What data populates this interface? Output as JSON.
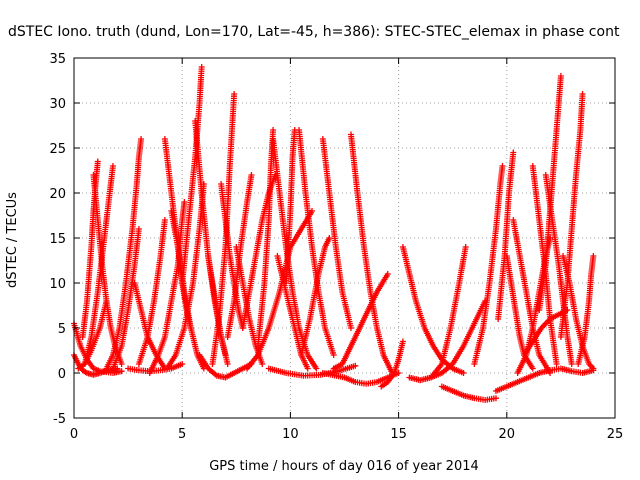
{
  "chart_data": {
    "type": "scatter",
    "title": "dSTEC Iono. truth (dund, Lon=170, Lat=-45, h=386): STEC-STEC_elemax in phase cont",
    "xlabel": "GPS time / hours of day 016 of year 2014",
    "ylabel": "dSTEC  / TECUs",
    "xlim": [
      0,
      25
    ],
    "ylim": [
      -5,
      35
    ],
    "xticks": [
      0,
      5,
      10,
      15,
      20,
      25
    ],
    "yticks": [
      -5,
      0,
      5,
      10,
      15,
      20,
      25,
      30,
      35
    ],
    "grid": true,
    "marker": "+",
    "color": "#ff0000",
    "series": [
      {
        "x": [
          0.0,
          0.3,
          0.6,
          0.9,
          1.2,
          1.5,
          1.8,
          2.2
        ],
        "y": [
          5.5,
          3.0,
          1.5,
          0.5,
          0.2,
          0.1,
          0.0,
          0.2
        ]
      },
      {
        "x": [
          0.0,
          0.2,
          0.4,
          0.6,
          0.9,
          1.2,
          1.6,
          2.0
        ],
        "y": [
          2.0,
          1.0,
          0.3,
          0.0,
          -0.2,
          0.0,
          0.3,
          0.5
        ]
      },
      {
        "x": [
          0.4,
          0.6,
          0.8,
          0.9,
          1.0,
          1.1
        ],
        "y": [
          4.0,
          8.0,
          14.0,
          18.0,
          21.0,
          23.5
        ]
      },
      {
        "x": [
          0.9,
          1.1,
          1.3,
          1.5,
          1.7,
          1.9,
          2.2
        ],
        "y": [
          22.0,
          17.0,
          12.0,
          8.0,
          5.0,
          3.0,
          1.0
        ]
      },
      {
        "x": [
          0.5,
          0.8,
          1.1,
          1.4,
          1.6,
          1.8
        ],
        "y": [
          1.0,
          4.0,
          9.0,
          15.0,
          19.0,
          23.0
        ]
      },
      {
        "x": [
          0.2,
          0.5,
          0.8,
          1.2,
          1.5
        ],
        "y": [
          0.5,
          1.0,
          2.5,
          5.0,
          8.0
        ]
      },
      {
        "x": [
          1.5,
          1.8,
          2.1,
          2.4,
          2.7,
          2.9,
          3.0,
          3.1
        ],
        "y": [
          0.5,
          2.0,
          5.0,
          10.0,
          16.0,
          21.0,
          24.0,
          26.0
        ]
      },
      {
        "x": [
          1.8,
          2.2,
          2.5,
          2.8,
          3.0
        ],
        "y": [
          0.5,
          3.0,
          7.0,
          12.0,
          16.0
        ]
      },
      {
        "x": [
          2.8,
          3.1,
          3.4,
          3.8,
          4.2
        ],
        "y": [
          10.0,
          7.0,
          4.0,
          2.0,
          0.5
        ]
      },
      {
        "x": [
          2.5,
          3.0,
          3.5,
          4.0,
          4.5,
          5.0
        ],
        "y": [
          0.5,
          0.3,
          0.2,
          0.3,
          0.5,
          1.0
        ]
      },
      {
        "x": [
          3.0,
          3.4,
          3.7,
          4.0,
          4.2
        ],
        "y": [
          1.0,
          4.0,
          8.0,
          13.0,
          17.0
        ]
      },
      {
        "x": [
          3.5,
          3.9,
          4.2,
          4.5,
          4.8,
          5.0,
          5.1
        ],
        "y": [
          0.0,
          2.0,
          4.0,
          8.0,
          12.0,
          17.0,
          19.0
        ]
      },
      {
        "x": [
          4.2,
          4.5,
          4.8,
          5.1,
          5.4,
          5.7,
          6.0
        ],
        "y": [
          26.0,
          20.0,
          14.0,
          9.0,
          5.0,
          2.0,
          0.5
        ]
      },
      {
        "x": [
          4.5,
          4.8,
          5.0,
          5.2,
          5.4
        ],
        "y": [
          18.0,
          14.0,
          10.0,
          7.0,
          5.0
        ]
      },
      {
        "x": [
          5.0,
          5.3,
          5.6,
          5.8,
          5.9
        ],
        "y": [
          10.0,
          17.0,
          24.0,
          30.0,
          34.0
        ]
      },
      {
        "x": [
          4.3,
          4.7,
          5.1,
          5.5,
          5.8,
          6.0
        ],
        "y": [
          0.5,
          2.0,
          5.0,
          10.0,
          16.0,
          21.0
        ]
      },
      {
        "x": [
          5.6,
          5.9,
          6.2,
          6.5,
          6.8,
          7.1
        ],
        "y": [
          28.0,
          20.0,
          13.0,
          8.0,
          4.0,
          1.0
        ]
      },
      {
        "x": [
          5.8,
          6.2,
          6.6,
          7.0,
          7.4,
          7.8,
          8.2
        ],
        "y": [
          2.0,
          0.5,
          -0.3,
          -0.5,
          0.0,
          0.5,
          1.0
        ]
      },
      {
        "x": [
          6.2,
          6.4,
          6.6,
          6.8,
          7.0
        ],
        "y": [
          13.0,
          10.0,
          7.0,
          4.0,
          2.0
        ]
      },
      {
        "x": [
          6.4,
          6.7,
          7.0,
          7.2,
          7.4
        ],
        "y": [
          1.0,
          6.0,
          14.0,
          23.0,
          31.0
        ]
      },
      {
        "x": [
          6.8,
          7.0,
          7.2,
          7.4,
          7.6,
          7.8
        ],
        "y": [
          21.0,
          17.0,
          13.0,
          10.0,
          7.0,
          5.0
        ]
      },
      {
        "x": [
          7.1,
          7.4,
          7.7,
          8.0,
          8.2
        ],
        "y": [
          4.0,
          8.0,
          14.0,
          19.0,
          22.0
        ]
      },
      {
        "x": [
          7.5,
          7.8,
          8.1,
          8.4,
          8.7
        ],
        "y": [
          14.0,
          10.0,
          6.0,
          3.0,
          1.0
        ]
      },
      {
        "x": [
          7.8,
          8.1,
          8.4,
          8.7,
          9.0,
          9.3
        ],
        "y": [
          5.0,
          9.0,
          13.0,
          17.0,
          20.0,
          22.0
        ]
      },
      {
        "x": [
          8.5,
          8.8,
          9.0,
          9.1,
          9.2
        ],
        "y": [
          3.0,
          10.0,
          17.0,
          23.0,
          27.0
        ]
      },
      {
        "x": [
          9.2,
          9.5,
          9.8,
          10.1,
          10.4,
          10.8,
          11.2
        ],
        "y": [
          26.0,
          20.0,
          14.0,
          9.0,
          5.0,
          2.0,
          0.5
        ]
      },
      {
        "x": [
          9.4,
          9.8,
          10.2,
          10.5,
          10.8
        ],
        "y": [
          13.0,
          9.0,
          5.0,
          2.0,
          0.5
        ]
      },
      {
        "x": [
          8.0,
          8.5,
          9.0,
          9.5,
          10.0,
          10.5,
          11.0
        ],
        "y": [
          0.5,
          2.0,
          5.0,
          9.0,
          14.0,
          16.0,
          18.0
        ]
      },
      {
        "x": [
          9.8,
          10.0,
          10.1,
          10.2
        ],
        "y": [
          10.0,
          18.0,
          24.0,
          27.0
        ]
      },
      {
        "x": [
          10.4,
          10.7,
          11.0,
          11.3,
          11.6,
          12.0
        ],
        "y": [
          27.0,
          20.0,
          14.0,
          9.0,
          5.0,
          2.0
        ]
      },
      {
        "x": [
          10.5,
          10.9,
          11.3,
          11.6,
          11.8
        ],
        "y": [
          2.0,
          6.0,
          11.0,
          14.0,
          15.0
        ]
      },
      {
        "x": [
          11.5,
          11.8,
          12.1,
          12.4,
          12.8
        ],
        "y": [
          26.0,
          20.0,
          14.0,
          9.0,
          5.0
        ]
      },
      {
        "x": [
          9.0,
          9.8,
          10.6,
          11.4,
          12.2,
          13.0
        ],
        "y": [
          0.5,
          0.0,
          -0.3,
          -0.2,
          0.2,
          0.8
        ]
      },
      {
        "x": [
          12.0,
          12.4,
          12.8,
          13.2,
          13.6,
          14.0,
          14.5
        ],
        "y": [
          0.5,
          1.0,
          3.0,
          5.0,
          7.0,
          9.0,
          11.0
        ]
      },
      {
        "x": [
          12.8,
          13.1,
          13.4,
          13.7,
          14.0,
          14.3,
          14.7
        ],
        "y": [
          26.5,
          20.0,
          14.0,
          9.0,
          5.0,
          2.0,
          0.0
        ]
      },
      {
        "x": [
          11.5,
          12.5,
          13.0,
          13.5,
          14.0,
          14.5,
          15.0
        ],
        "y": [
          0.0,
          -0.5,
          -1.0,
          -1.2,
          -1.0,
          -0.5,
          0.0
        ]
      },
      {
        "x": [
          14.2,
          14.5,
          14.8,
          15.0,
          15.2
        ],
        "y": [
          -1.5,
          -1.0,
          0.0,
          1.5,
          3.5
        ]
      },
      {
        "x": [
          15.2,
          15.5,
          15.8,
          16.2,
          16.6,
          17.0,
          17.5,
          18.0
        ],
        "y": [
          14.0,
          11.0,
          8.0,
          5.0,
          3.0,
          1.5,
          0.5,
          0.0
        ]
      },
      {
        "x": [
          15.5,
          16.0,
          16.5,
          17.0,
          17.5,
          18.0,
          18.5,
          19.0
        ],
        "y": [
          -0.5,
          -0.8,
          -0.5,
          0.0,
          1.0,
          3.0,
          5.5,
          8.0
        ]
      },
      {
        "x": [
          16.5,
          17.0,
          17.4,
          17.8,
          18.1
        ],
        "y": [
          -0.5,
          1.0,
          5.0,
          10.0,
          14.0
        ]
      },
      {
        "x": [
          17.0,
          17.5,
          18.0,
          18.5,
          19.0,
          19.5
        ],
        "y": [
          -1.5,
          -2.0,
          -2.5,
          -2.8,
          -3.0,
          -2.8
        ]
      },
      {
        "x": [
          18.5,
          18.9,
          19.2,
          19.5,
          19.7,
          19.8
        ],
        "y": [
          1.0,
          5.0,
          10.0,
          16.0,
          21.0,
          23.0
        ]
      },
      {
        "x": [
          19.5,
          20.0,
          20.5,
          21.0,
          21.5
        ],
        "y": [
          -2.0,
          -1.5,
          -1.0,
          -0.5,
          0.0
        ]
      },
      {
        "x": [
          20.0,
          20.2,
          20.4,
          20.6,
          20.8,
          21.2
        ],
        "y": [
          13.0,
          10.0,
          7.0,
          4.0,
          2.0,
          0.5
        ]
      },
      {
        "x": [
          19.6,
          19.9,
          20.1,
          20.3
        ],
        "y": [
          6.0,
          13.0,
          20.0,
          24.5
        ]
      },
      {
        "x": [
          20.3,
          20.6,
          20.9,
          21.2,
          21.5,
          22.0
        ],
        "y": [
          17.0,
          13.0,
          9.0,
          5.0,
          2.0,
          0.0
        ]
      },
      {
        "x": [
          20.5,
          20.9,
          21.2,
          21.5,
          21.8,
          22.0
        ],
        "y": [
          0.0,
          2.0,
          5.0,
          9.0,
          13.0,
          15.0
        ]
      },
      {
        "x": [
          21.2,
          21.5,
          21.8,
          22.0,
          22.3
        ],
        "y": [
          23.0,
          17.0,
          11.0,
          6.0,
          1.0
        ]
      },
      {
        "x": [
          21.5,
          21.8,
          22.0,
          22.2,
          22.4,
          22.5
        ],
        "y": [
          7.0,
          12.0,
          18.0,
          24.0,
          30.0,
          33.0
        ]
      },
      {
        "x": [
          21.8,
          22.1,
          22.4,
          22.6,
          22.8,
          23.0
        ],
        "y": [
          22.0,
          17.0,
          12.0,
          8.0,
          4.0,
          1.0
        ]
      },
      {
        "x": [
          22.5,
          22.8,
          23.0,
          23.2,
          23.4,
          23.5
        ],
        "y": [
          4.0,
          10.0,
          16.0,
          22.0,
          27.0,
          31.0
        ]
      },
      {
        "x": [
          22.6,
          22.9,
          23.2,
          23.5,
          23.8,
          24.0
        ],
        "y": [
          13.0,
          10.0,
          6.0,
          3.0,
          1.0,
          0.5
        ]
      },
      {
        "x": [
          23.3,
          23.6,
          23.8,
          23.9,
          24.0
        ],
        "y": [
          1.0,
          4.0,
          8.0,
          11.0,
          13.0
        ]
      },
      {
        "x": [
          21.5,
          22.0,
          22.5,
          23.0,
          23.5,
          24.0
        ],
        "y": [
          0.0,
          0.3,
          0.5,
          0.2,
          0.0,
          0.3
        ]
      },
      {
        "x": [
          20.8,
          21.2,
          21.6,
          22.0,
          22.4,
          22.8
        ],
        "y": [
          2.0,
          3.5,
          5.0,
          6.0,
          6.5,
          7.0
        ]
      }
    ]
  }
}
